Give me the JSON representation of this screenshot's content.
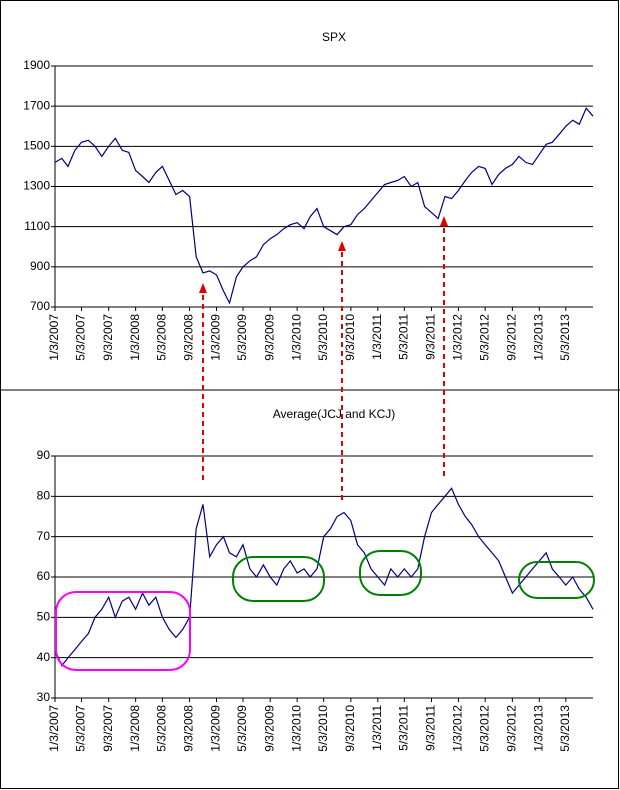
{
  "chart_data": [
    {
      "type": "line",
      "title": "SPX",
      "color": "#000080",
      "grid": true,
      "xlim": [
        "1/3/2007",
        "9/3/2013"
      ],
      "xticks": [
        "1/3/2007",
        "5/3/2007",
        "9/3/2007",
        "1/3/2008",
        "5/3/2008",
        "9/3/2008",
        "1/3/2009",
        "5/3/2009",
        "9/3/2009",
        "1/3/2010",
        "5/3/2010",
        "9/3/2010",
        "1/3/2011",
        "5/3/2011",
        "9/3/2011",
        "1/3/2012",
        "5/3/2012",
        "9/3/2012",
        "1/3/2013",
        "5/3/2013"
      ],
      "ylim": [
        700,
        1900
      ],
      "yticks": [
        700,
        900,
        1100,
        1300,
        1500,
        1700,
        1900
      ],
      "x": [
        "1/3/2007",
        "2/3/2007",
        "3/3/2007",
        "4/3/2007",
        "5/3/2007",
        "6/3/2007",
        "7/3/2007",
        "8/3/2007",
        "9/3/2007",
        "10/3/2007",
        "11/3/2007",
        "12/3/2007",
        "1/3/2008",
        "2/3/2008",
        "3/3/2008",
        "4/3/2008",
        "5/3/2008",
        "6/3/2008",
        "7/3/2008",
        "8/3/2008",
        "9/3/2008",
        "10/3/2008",
        "11/3/2008",
        "12/3/2008",
        "1/3/2009",
        "2/3/2009",
        "3/3/2009",
        "4/3/2009",
        "5/3/2009",
        "6/3/2009",
        "7/3/2009",
        "8/3/2009",
        "9/3/2009",
        "10/3/2009",
        "11/3/2009",
        "12/3/2009",
        "1/3/2010",
        "2/3/2010",
        "3/3/2010",
        "4/3/2010",
        "5/3/2010",
        "6/3/2010",
        "7/3/2010",
        "8/3/2010",
        "9/3/2010",
        "10/3/2010",
        "11/3/2010",
        "12/3/2010",
        "1/3/2011",
        "2/3/2011",
        "3/3/2011",
        "4/3/2011",
        "5/3/2011",
        "6/3/2011",
        "7/3/2011",
        "8/3/2011",
        "9/3/2011",
        "10/3/2011",
        "11/3/2011",
        "12/3/2011",
        "1/3/2012",
        "2/3/2012",
        "3/3/2012",
        "4/3/2012",
        "5/3/2012",
        "6/3/2012",
        "7/3/2012",
        "8/3/2012",
        "9/3/2012",
        "10/3/2012",
        "11/3/2012",
        "12/3/2012",
        "1/3/2013",
        "2/3/2013",
        "3/3/2013",
        "4/3/2013",
        "5/3/2013",
        "6/3/2013",
        "7/3/2013",
        "8/3/2013",
        "9/3/2013"
      ],
      "values": [
        1420,
        1440,
        1400,
        1480,
        1520,
        1530,
        1500,
        1450,
        1500,
        1540,
        1480,
        1470,
        1380,
        1350,
        1320,
        1370,
        1400,
        1330,
        1260,
        1280,
        1250,
        950,
        870,
        880,
        860,
        780,
        720,
        850,
        900,
        930,
        950,
        1010,
        1040,
        1060,
        1090,
        1110,
        1120,
        1090,
        1150,
        1190,
        1100,
        1080,
        1060,
        1100,
        1110,
        1160,
        1190,
        1230,
        1270,
        1310,
        1320,
        1330,
        1350,
        1300,
        1320,
        1200,
        1170,
        1140,
        1250,
        1240,
        1280,
        1330,
        1370,
        1400,
        1390,
        1310,
        1360,
        1390,
        1410,
        1450,
        1420,
        1410,
        1460,
        1510,
        1520,
        1560,
        1600,
        1630,
        1610,
        1690,
        1650
      ]
    },
    {
      "type": "line",
      "title": "Average(JCJ and KCJ)",
      "color": "#000080",
      "grid": true,
      "xlim": [
        "1/3/2007",
        "9/3/2013"
      ],
      "xticks": [
        "1/3/2007",
        "5/3/2007",
        "9/3/2007",
        "1/3/2008",
        "5/3/2008",
        "9/3/2008",
        "1/3/2009",
        "5/3/2009",
        "9/3/2009",
        "1/3/2010",
        "5/3/2010",
        "9/3/2010",
        "1/3/2011",
        "5/3/2011",
        "9/3/2011",
        "1/3/2012",
        "5/3/2012",
        "9/3/2012",
        "1/3/2013",
        "5/3/2013"
      ],
      "ylim": [
        30,
        90
      ],
      "yticks": [
        30,
        40,
        50,
        60,
        70,
        80,
        90
      ],
      "x": [
        "1/3/2007",
        "2/3/2007",
        "3/3/2007",
        "4/3/2007",
        "5/3/2007",
        "6/3/2007",
        "7/3/2007",
        "8/3/2007",
        "9/3/2007",
        "10/3/2007",
        "11/3/2007",
        "12/3/2007",
        "1/3/2008",
        "2/3/2008",
        "3/3/2008",
        "4/3/2008",
        "5/3/2008",
        "6/3/2008",
        "7/3/2008",
        "8/3/2008",
        "9/3/2008",
        "10/3/2008",
        "11/3/2008",
        "12/3/2008",
        "1/3/2009",
        "2/3/2009",
        "3/3/2009",
        "4/3/2009",
        "5/3/2009",
        "6/3/2009",
        "7/3/2009",
        "8/3/2009",
        "9/3/2009",
        "10/3/2009",
        "11/3/2009",
        "12/3/2009",
        "1/3/2010",
        "2/3/2010",
        "3/3/2010",
        "4/3/2010",
        "5/3/2010",
        "6/3/2010",
        "7/3/2010",
        "8/3/2010",
        "9/3/2010",
        "10/3/2010",
        "11/3/2010",
        "12/3/2010",
        "1/3/2011",
        "2/3/2011",
        "3/3/2011",
        "4/3/2011",
        "5/3/2011",
        "6/3/2011",
        "7/3/2011",
        "8/3/2011",
        "9/3/2011",
        "10/3/2011",
        "11/3/2011",
        "12/3/2011",
        "1/3/2012",
        "2/3/2012",
        "3/3/2012",
        "4/3/2012",
        "5/3/2012",
        "6/3/2012",
        "7/3/2012",
        "8/3/2012",
        "9/3/2012",
        "10/3/2012",
        "11/3/2012",
        "12/3/2012",
        "1/3/2013",
        "2/3/2013",
        "3/3/2013",
        "4/3/2013",
        "5/3/2013",
        "6/3/2013",
        "7/3/2013",
        "8/3/2013",
        "9/3/2013"
      ],
      "values": [
        42,
        38,
        40,
        42,
        44,
        46,
        50,
        52,
        55,
        50,
        54,
        55,
        52,
        56,
        53,
        55,
        50,
        47,
        45,
        47,
        50,
        72,
        78,
        65,
        68,
        70,
        66,
        65,
        68,
        62,
        60,
        63,
        60,
        58,
        62,
        64,
        61,
        62,
        60,
        62,
        70,
        72,
        75,
        76,
        74,
        68,
        66,
        62,
        60,
        58,
        62,
        60,
        62,
        60,
        62,
        70,
        76,
        78,
        80,
        82,
        78,
        75,
        73,
        70,
        68,
        66,
        64,
        60,
        56,
        58,
        60,
        62,
        64,
        66,
        62,
        60,
        58,
        60,
        57,
        55,
        52
      ]
    }
  ]
}
